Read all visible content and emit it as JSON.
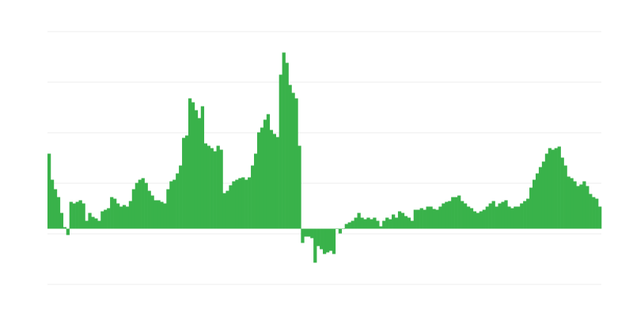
{
  "chart_data": {
    "type": "bar",
    "title": "",
    "xlabel": "",
    "ylabel": "",
    "ylim": [
      -70,
      250
    ],
    "gridlines": [
      250,
      186,
      122,
      58,
      -6,
      -70
    ],
    "grid": true,
    "legend": "none",
    "colors": {
      "bar": "#39b24a",
      "grid": "#eeeeee",
      "background": "#ffffff"
    },
    "values": [
      95,
      62,
      50,
      40,
      20,
      2,
      -8,
      34,
      32,
      34,
      36,
      32,
      10,
      20,
      15,
      13,
      10,
      22,
      24,
      26,
      40,
      38,
      32,
      28,
      30,
      28,
      35,
      50,
      58,
      62,
      64,
      58,
      48,
      42,
      36,
      36,
      34,
      32,
      50,
      60,
      62,
      70,
      80,
      115,
      118,
      165,
      160,
      150,
      140,
      155,
      108,
      105,
      102,
      98,
      105,
      100,
      45,
      48,
      55,
      60,
      62,
      64,
      65,
      62,
      65,
      80,
      95,
      122,
      128,
      138,
      145,
      125,
      120,
      116,
      195,
      223,
      210,
      182,
      172,
      165,
      105,
      -18,
      -10,
      -10,
      -12,
      -43,
      -22,
      -26,
      -32,
      -30,
      -28,
      -32,
      0,
      -6,
      0,
      6,
      8,
      10,
      14,
      20,
      14,
      12,
      14,
      12,
      14,
      10,
      3,
      10,
      14,
      12,
      18,
      14,
      22,
      20,
      16,
      14,
      10,
      24,
      24,
      26,
      24,
      28,
      28,
      25,
      24,
      28,
      32,
      34,
      35,
      40,
      40,
      42,
      35,
      32,
      28,
      26,
      22,
      20,
      22,
      24,
      28,
      32,
      35,
      28,
      32,
      34,
      36,
      28,
      26,
      28,
      28,
      32,
      35,
      38,
      52,
      62,
      70,
      78,
      85,
      95,
      102,
      100,
      102,
      104,
      90,
      80,
      66,
      64,
      60,
      54,
      56,
      60,
      54,
      44,
      40,
      38,
      28
    ]
  }
}
